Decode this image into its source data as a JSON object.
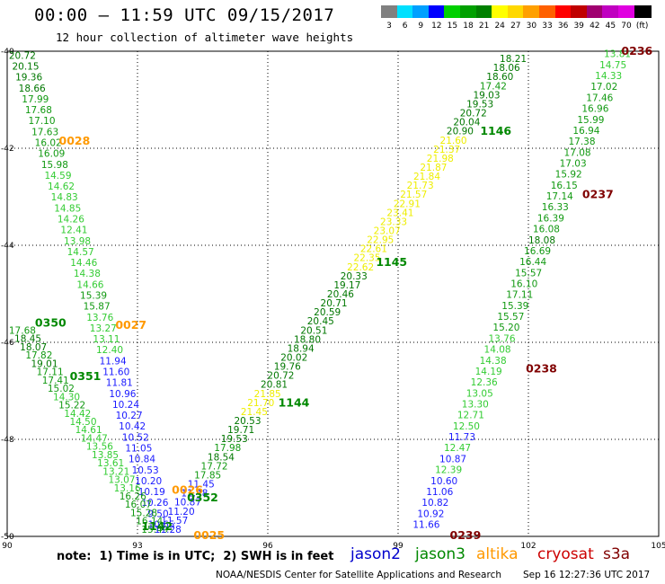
{
  "header": {
    "title": "00:00 – 11:59 UTC 09/15/2017",
    "subtitle": "12 hour collection of altimeter wave heights"
  },
  "legend": {
    "colors": [
      "#808080",
      "#00e0ff",
      "#00a0ff",
      "#0000ff",
      "#00d000",
      "#00a000",
      "#008000",
      "#ffff00",
      "#ffd800",
      "#ffa000",
      "#ff6000",
      "#ff0000",
      "#c00000",
      "#a00070",
      "#c000c0",
      "#e000e0",
      "#000000"
    ],
    "labels": [
      "3",
      "6",
      "9",
      "12",
      "15",
      "18",
      "21",
      "24",
      "27",
      "30",
      "33",
      "36",
      "39",
      "42",
      "45",
      "70",
      "(ft)"
    ]
  },
  "footer": {
    "note": "note:  1) Time is in UTC;  2) SWH is in feet",
    "credit": "NOAA/NESDIS Center for Satellite Applications and Research",
    "stamp": "Sep 16 12:27:36 UTC 2017",
    "satellites": [
      {
        "name": "jason2",
        "color": "#0000cc"
      },
      {
        "name": "jason3",
        "color": "#008800"
      },
      {
        "name": "altika",
        "color": "#ff9900"
      },
      {
        "name": "cryosat",
        "color": "#cc0000"
      },
      {
        "name": "s3a",
        "color": "#800000"
      }
    ]
  },
  "chart_data": {
    "type": "scatter",
    "xlim": [
      90,
      105
    ],
    "ylim": [
      -50,
      -40
    ],
    "x_ticks": [
      90,
      93,
      96,
      99,
      102,
      105
    ],
    "x_tick_labels": [
      "90",
      "93",
      "96",
      "99",
      "102",
      "105"
    ],
    "y_ticks": [
      -40,
      -42,
      -44,
      -46,
      -48,
      -50
    ],
    "y_tick_labels": [
      "-40",
      "-42",
      "-44",
      "-46",
      "-48",
      "-50"
    ],
    "grid": true,
    "tracks": [
      {
        "id": "track-west",
        "start": [
          90.35,
          -40.08
        ],
        "end": [
          93.55,
          -49.75
        ],
        "values": [
          "20.72",
          "20.15",
          "19.36",
          "18.66",
          "17.99",
          "17.68",
          "17.10",
          "17.63",
          "16.02",
          "16.09",
          "15.98",
          "14.59",
          "14.62",
          "14.83",
          "14.85",
          "14.26",
          "12.41",
          "13.98",
          "14.57",
          "14.46",
          "14.38",
          "14.66",
          "15.39",
          "15.87",
          "13.76",
          "13.27",
          "13.11",
          "12.40",
          "11.94",
          "11.60",
          "11.81",
          "10.96",
          "10.24",
          "10.27",
          "10.42",
          "10.52",
          "11.05",
          "10.84",
          "10.53",
          "10.20",
          "10.19",
          "10.26",
          "9.50",
          "10.65"
        ]
      },
      {
        "id": "track-west-inner",
        "start": [
          90.35,
          -45.75
        ],
        "end": [
          93.4,
          -49.85
        ],
        "values": [
          "17.68",
          "18.45",
          "18.07",
          "17.82",
          "19.01",
          "17.11",
          "17.41",
          "15.02",
          "14.30",
          "15.22",
          "14.42",
          "14.50",
          "14.61",
          "14.47",
          "13.56",
          "13.85",
          "13.61",
          "13.21",
          "13.07",
          "13.16",
          "16.26",
          "16.07",
          "15.28",
          "16.14",
          "15.49"
        ]
      },
      {
        "id": "track-center",
        "start": [
          93.7,
          -49.85
        ],
        "end": [
          101.65,
          -40.15
        ],
        "values": [
          "11.28",
          "11.57",
          "11.20",
          "10.87",
          "11.48",
          "11.45",
          "17.85",
          "17.72",
          "18.54",
          "17.98",
          "19.53",
          "19.71",
          "20.53",
          "21.45",
          "21.70",
          "21.85",
          "20.81",
          "20.72",
          "19.76",
          "20.02",
          "18.94",
          "18.80",
          "20.51",
          "20.45",
          "20.59",
          "20.71",
          "20.46",
          "19.17",
          "20.33",
          "22.62",
          "22.35",
          "22.61",
          "22.95",
          "23.07",
          "23.33",
          "23.41",
          "22.91",
          "21.57",
          "21.73",
          "21.84",
          "21.87",
          "21.98",
          "21.37",
          "21.60",
          "20.90",
          "20.04",
          "20.72",
          "19.53",
          "19.03",
          "17.42",
          "18.60",
          "18.06",
          "18.21"
        ]
      },
      {
        "id": "track-east",
        "start": [
          99.65,
          -49.75
        ],
        "end": [
          104.05,
          -40.05
        ],
        "values": [
          "11.66",
          "10.92",
          "10.82",
          "11.06",
          "10.60",
          "12.39",
          "10.87",
          "12.47",
          "11.73",
          "12.50",
          "12.71",
          "13.30",
          "13.05",
          "12.36",
          "14.19",
          "14.38",
          "14.08",
          "13.76",
          "15.20",
          "15.57",
          "15.39",
          "17.11",
          "16.10",
          "15.57",
          "16.44",
          "16.69",
          "18.08",
          "16.08",
          "16.39",
          "16.33",
          "17.14",
          "16.15",
          "15.92",
          "17.03",
          "17.08",
          "17.38",
          "16.94",
          "15.99",
          "16.96",
          "17.46",
          "17.02",
          "14.33",
          "14.75",
          "13.81"
        ]
      }
    ],
    "time_labels": [
      {
        "text": "0028",
        "x": 91.55,
        "y": -41.85,
        "color": "#ff9900"
      },
      {
        "text": "0350",
        "x": 91.0,
        "y": -45.6,
        "color": "#008800"
      },
      {
        "text": "0027",
        "x": 92.85,
        "y": -45.65,
        "color": "#ff9900"
      },
      {
        "text": "0351",
        "x": 91.8,
        "y": -46.7,
        "color": "#008800"
      },
      {
        "text": "0026",
        "x": 94.15,
        "y": -49.05,
        "color": "#ff9900"
      },
      {
        "text": "0352",
        "x": 94.5,
        "y": -49.2,
        "color": "#008800"
      },
      {
        "text": "1142",
        "x": 93.45,
        "y": -49.8,
        "color": "#008800"
      },
      {
        "text": "0025",
        "x": 94.65,
        "y": -49.98,
        "color": "#ff9900"
      },
      {
        "text": "1144",
        "x": 96.6,
        "y": -47.25,
        "color": "#008800"
      },
      {
        "text": "1145",
        "x": 98.85,
        "y": -44.35,
        "color": "#008800"
      },
      {
        "text": "1146",
        "x": 101.25,
        "y": -41.65,
        "color": "#008800"
      },
      {
        "text": "0239",
        "x": 100.55,
        "y": -49.98,
        "color": "#800000"
      },
      {
        "text": "0238",
        "x": 102.3,
        "y": -46.55,
        "color": "#800000"
      },
      {
        "text": "0237",
        "x": 103.6,
        "y": -42.95,
        "color": "#800000"
      },
      {
        "text": "0236",
        "x": 104.5,
        "y": -40.0,
        "color": "#800000"
      }
    ]
  }
}
